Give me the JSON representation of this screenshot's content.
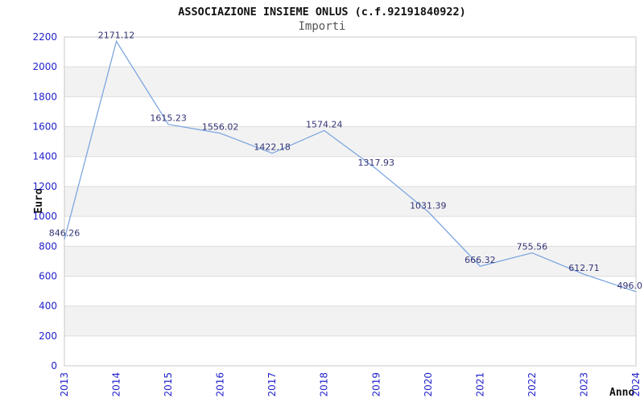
{
  "chart_data": {
    "type": "line",
    "title": "ASSOCIAZIONE INSIEME ONLUS (c.f.92191840922)",
    "subtitle": "Importi",
    "xlabel": "Anno",
    "ylabel": "Euro",
    "categories": [
      "2013",
      "2014",
      "2015",
      "2016",
      "2017",
      "2018",
      "2019",
      "2020",
      "2021",
      "2022",
      "2023",
      "2024"
    ],
    "series": [
      {
        "name": "Importi",
        "values": [
          846.26,
          2171.12,
          1615.23,
          1556.02,
          1422.18,
          1574.24,
          1317.93,
          1031.39,
          666.32,
          755.56,
          612.71,
          496.0
        ]
      }
    ],
    "point_labels": [
      "846.26",
      "2171.12",
      "1615.23",
      "1556.02",
      "1422.18",
      "1574.24",
      "1317.93",
      "1031.39",
      "666.32",
      "755.56",
      "612.71",
      "496.0"
    ],
    "ylim": [
      0,
      2200
    ],
    "ytick_step": 200,
    "grid": true,
    "legend": "none",
    "colors": {
      "line": "#7da7e0",
      "axis_tick_label": "#2222cc",
      "point_label": "#333377",
      "band": "#f2f2f2",
      "gridline": "#dddddd",
      "plot_border": "#c8c8c8",
      "title": "#111111",
      "subtitle": "#555555",
      "axis_title": "#111111"
    }
  }
}
